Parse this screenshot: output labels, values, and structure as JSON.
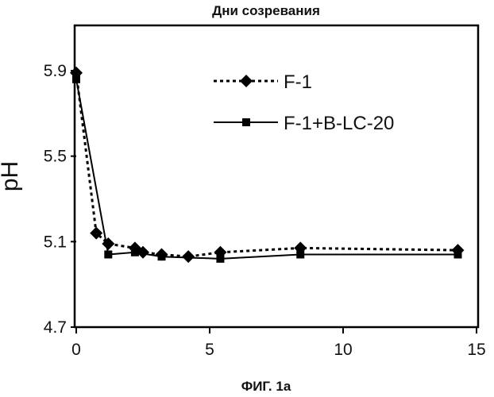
{
  "chart_data": {
    "type": "line",
    "title": "Дни созревания",
    "caption": "ФИГ. 1а",
    "xlabel": "",
    "ylabel": "pH",
    "xlim": [
      0,
      15
    ],
    "ylim": [
      4.7,
      6.0
    ],
    "x_ticks": [
      "0",
      "5",
      "10",
      "15"
    ],
    "y_ticks": [
      "5.9",
      "5.5",
      "5.1",
      "4.7"
    ],
    "grid": false,
    "legend_position": "top-right",
    "series": [
      {
        "name": "F-1",
        "line_style": "dotted",
        "marker": "diamond",
        "color": "#000000",
        "points": [
          [
            0,
            5.89
          ],
          [
            0.75,
            5.14
          ],
          [
            1.2,
            5.09
          ],
          [
            2.2,
            5.07
          ],
          [
            2.5,
            5.05
          ],
          [
            3.2,
            5.04
          ],
          [
            4.2,
            5.03
          ],
          [
            5.4,
            5.05
          ],
          [
            8.4,
            5.07
          ],
          [
            14.3,
            5.06
          ]
        ]
      },
      {
        "name": "F-1+B-LC-20",
        "line_style": "solid",
        "marker": "square",
        "color": "#000000",
        "points": [
          [
            0,
            5.86
          ],
          [
            1.2,
            5.04
          ],
          [
            2.2,
            5.05
          ],
          [
            3.2,
            5.03
          ],
          [
            5.4,
            5.02
          ],
          [
            8.4,
            5.04
          ],
          [
            14.3,
            5.04
          ]
        ]
      }
    ]
  }
}
